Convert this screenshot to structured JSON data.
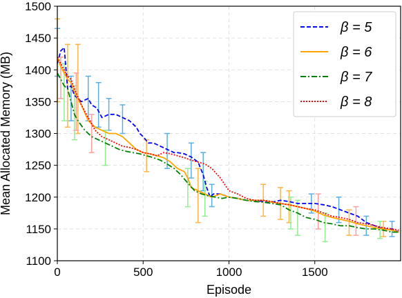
{
  "chart_data": {
    "type": "line",
    "title": "",
    "xlabel": "Episode",
    "ylabel": "Mean Allocated Memory (MB)",
    "xlim": [
      0,
      2000
    ],
    "ylim": [
      1100,
      1500
    ],
    "xticks": [
      0,
      500,
      1000,
      1500
    ],
    "yticks": [
      1100,
      1150,
      1200,
      1250,
      1300,
      1350,
      1400,
      1450,
      1500
    ],
    "grid": true,
    "legend_position": "top-right",
    "series": [
      {
        "name": "β = 5",
        "color": "#0000ff",
        "errorbar_color": "#5aaee6",
        "linestyle": "dashed",
        "x": [
          0,
          20,
          40,
          60,
          80,
          100,
          140,
          180,
          200,
          230,
          260,
          300,
          340,
          380,
          420,
          460,
          480,
          500,
          530,
          560,
          600,
          640,
          680,
          700,
          740,
          780,
          820,
          850,
          870,
          890,
          910,
          950,
          1000,
          1050,
          1100,
          1150,
          1200,
          1250,
          1300,
          1350,
          1400,
          1450,
          1500,
          1550,
          1600,
          1650,
          1700,
          1750,
          1800,
          1850,
          1900,
          1950,
          1990
        ],
        "y": [
          1410,
          1430,
          1435,
          1370,
          1375,
          1360,
          1350,
          1355,
          1345,
          1340,
          1325,
          1330,
          1330,
          1325,
          1320,
          1310,
          1300,
          1295,
          1285,
          1285,
          1280,
          1275,
          1270,
          1270,
          1268,
          1263,
          1255,
          1235,
          1215,
          1200,
          1205,
          1205,
          1200,
          1198,
          1195,
          1195,
          1193,
          1192,
          1195,
          1193,
          1190,
          1190,
          1190,
          1188,
          1185,
          1180,
          1175,
          1170,
          1160,
          1155,
          1150,
          1150,
          1145
        ],
        "errorbars": [
          {
            "x": 0,
            "low": 1390,
            "high": 1465
          },
          {
            "x": 80,
            "low": 1320,
            "high": 1390
          },
          {
            "x": 180,
            "low": 1320,
            "high": 1390
          },
          {
            "x": 240,
            "low": 1310,
            "high": 1380
          },
          {
            "x": 300,
            "low": 1305,
            "high": 1355
          },
          {
            "x": 380,
            "low": 1300,
            "high": 1345
          },
          {
            "x": 640,
            "low": 1245,
            "high": 1300
          },
          {
            "x": 780,
            "low": 1230,
            "high": 1285
          },
          {
            "x": 850,
            "low": 1210,
            "high": 1270
          },
          {
            "x": 900,
            "low": 1185,
            "high": 1220
          },
          {
            "x": 1480,
            "low": 1175,
            "high": 1205
          },
          {
            "x": 1640,
            "low": 1160,
            "high": 1200
          },
          {
            "x": 1800,
            "low": 1140,
            "high": 1170
          },
          {
            "x": 1950,
            "low": 1138,
            "high": 1162
          }
        ]
      },
      {
        "name": "β = 6",
        "color": "#ffa500",
        "errorbar_color": "#ffb347",
        "linestyle": "solid",
        "x": [
          0,
          20,
          40,
          60,
          80,
          100,
          140,
          180,
          220,
          260,
          300,
          340,
          380,
          420,
          460,
          500,
          540,
          580,
          620,
          660,
          700,
          740,
          760,
          780,
          820,
          860,
          900,
          950,
          1000,
          1050,
          1100,
          1150,
          1200,
          1250,
          1300,
          1350,
          1400,
          1450,
          1500,
          1550,
          1600,
          1650,
          1700,
          1750,
          1800,
          1850,
          1900,
          1950,
          1990
        ],
        "y": [
          1420,
          1405,
          1395,
          1385,
          1380,
          1365,
          1345,
          1320,
          1310,
          1305,
          1300,
          1300,
          1295,
          1285,
          1275,
          1270,
          1268,
          1265,
          1262,
          1255,
          1245,
          1240,
          1230,
          1215,
          1210,
          1205,
          1200,
          1205,
          1200,
          1198,
          1195,
          1195,
          1195,
          1192,
          1190,
          1188,
          1185,
          1182,
          1178,
          1172,
          1168,
          1165,
          1162,
          1158,
          1155,
          1152,
          1150,
          1148,
          1145
        ],
        "errorbars": [
          {
            "x": 0,
            "low": 1350,
            "high": 1480
          },
          {
            "x": 60,
            "low": 1310,
            "high": 1440
          },
          {
            "x": 120,
            "low": 1300,
            "high": 1440
          },
          {
            "x": 520,
            "low": 1240,
            "high": 1290
          },
          {
            "x": 820,
            "low": 1160,
            "high": 1245
          },
          {
            "x": 1200,
            "low": 1170,
            "high": 1220
          },
          {
            "x": 1300,
            "low": 1165,
            "high": 1215
          },
          {
            "x": 1350,
            "low": 1160,
            "high": 1210
          },
          {
            "x": 1700,
            "low": 1140,
            "high": 1180
          },
          {
            "x": 1900,
            "low": 1138,
            "high": 1162
          }
        ]
      },
      {
        "name": "β = 7",
        "color": "#008000",
        "errorbar_color": "#90ee90",
        "linestyle": "dashdot",
        "x": [
          0,
          20,
          40,
          60,
          80,
          100,
          120,
          160,
          200,
          240,
          280,
          320,
          360,
          400,
          440,
          480,
          520,
          560,
          600,
          640,
          680,
          720,
          760,
          800,
          840,
          880,
          920,
          960,
          1000,
          1050,
          1100,
          1150,
          1200,
          1250,
          1300,
          1350,
          1400,
          1450,
          1500,
          1550,
          1600,
          1650,
          1700,
          1750,
          1800,
          1850,
          1900,
          1950,
          1990
        ],
        "y": [
          1395,
          1385,
          1375,
          1370,
          1350,
          1330,
          1320,
          1305,
          1295,
          1290,
          1285,
          1280,
          1275,
          1272,
          1270,
          1268,
          1265,
          1262,
          1258,
          1252,
          1245,
          1235,
          1222,
          1210,
          1205,
          1202,
          1200,
          1198,
          1200,
          1198,
          1195,
          1193,
          1192,
          1190,
          1188,
          1180,
          1175,
          1168,
          1165,
          1160,
          1158,
          1155,
          1155,
          1152,
          1150,
          1150,
          1148,
          1145,
          1145
        ],
        "errorbars": [
          {
            "x": 40,
            "low": 1320,
            "high": 1410
          },
          {
            "x": 100,
            "low": 1290,
            "high": 1375
          },
          {
            "x": 280,
            "low": 1250,
            "high": 1305
          },
          {
            "x": 760,
            "low": 1185,
            "high": 1245
          },
          {
            "x": 860,
            "low": 1170,
            "high": 1225
          },
          {
            "x": 1360,
            "low": 1150,
            "high": 1200
          },
          {
            "x": 1400,
            "low": 1140,
            "high": 1195
          },
          {
            "x": 1560,
            "low": 1130,
            "high": 1175
          },
          {
            "x": 1880,
            "low": 1135,
            "high": 1162
          }
        ]
      },
      {
        "name": "β = 8",
        "color": "#ff0000",
        "errorbar_color": "#ff9f9f",
        "linestyle": "dotted",
        "x": [
          0,
          20,
          40,
          60,
          80,
          100,
          140,
          180,
          220,
          260,
          300,
          340,
          380,
          420,
          460,
          500,
          540,
          580,
          620,
          660,
          700,
          740,
          780,
          820,
          860,
          900,
          950,
          1000,
          1050,
          1100,
          1150,
          1200,
          1250,
          1300,
          1350,
          1400,
          1450,
          1500,
          1550,
          1600,
          1650,
          1700,
          1750,
          1800,
          1850,
          1900,
          1950,
          1990
        ],
        "y": [
          1420,
          1410,
          1400,
          1390,
          1385,
          1370,
          1345,
          1325,
          1305,
          1295,
          1290,
          1285,
          1280,
          1278,
          1275,
          1270,
          1268,
          1265,
          1270,
          1268,
          1265,
          1262,
          1258,
          1255,
          1252,
          1245,
          1230,
          1210,
          1205,
          1198,
          1195,
          1195,
          1193,
          1190,
          1188,
          1185,
          1182,
          1180,
          1175,
          1170,
          1168,
          1165,
          1160,
          1158,
          1155,
          1152,
          1150,
          1148
        ],
        "errorbars": [
          {
            "x": 20,
            "low": 1355,
            "high": 1420
          },
          {
            "x": 110,
            "low": 1305,
            "high": 1395
          },
          {
            "x": 200,
            "low": 1270,
            "high": 1330
          },
          {
            "x": 1520,
            "low": 1150,
            "high": 1205
          },
          {
            "x": 1740,
            "low": 1140,
            "high": 1185
          }
        ]
      }
    ]
  }
}
